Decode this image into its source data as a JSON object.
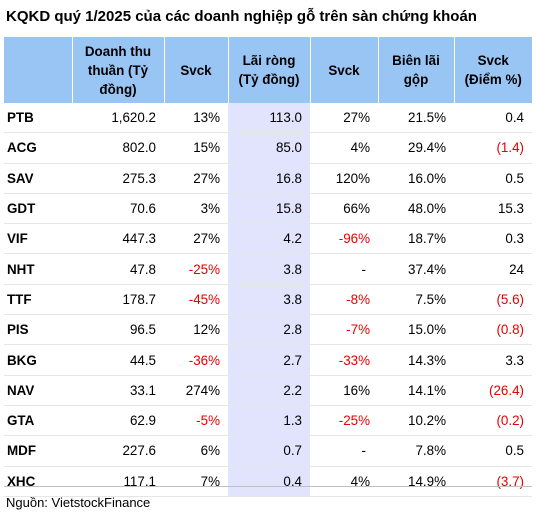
{
  "title": "KQKD quý 1/2025 của các doanh nghiệp gỗ trên sàn chứng khoán",
  "columns": [
    "",
    "Doanh thu thuần (Tỷ đồng)",
    "Svck",
    "Lãi ròng (Tỷ đồng)",
    "Svck",
    "Biên lãi gộp",
    "Svck (Điểm %)"
  ],
  "rows": [
    [
      "PTB",
      "1,620.2",
      "13%",
      "113.0",
      "27%",
      "21.5%",
      "0.4"
    ],
    [
      "ACG",
      "802.0",
      "15%",
      "85.0",
      "4%",
      "29.4%",
      "(1.4)"
    ],
    [
      "SAV",
      "275.3",
      "27%",
      "16.8",
      "120%",
      "16.0%",
      "0.5"
    ],
    [
      "GDT",
      "70.6",
      "3%",
      "15.8",
      "66%",
      "48.0%",
      "15.3"
    ],
    [
      "VIF",
      "447.3",
      "27%",
      "4.2",
      "-96%",
      "18.7%",
      "0.3"
    ],
    [
      "NHT",
      "47.8",
      "-25%",
      "3.8",
      "-",
      "37.4%",
      "24"
    ],
    [
      "TTF",
      "178.7",
      "-45%",
      "3.8",
      "-8%",
      "7.5%",
      "(5.6)"
    ],
    [
      "PIS",
      "96.5",
      "12%",
      "2.8",
      "-7%",
      "15.0%",
      "(0.8)"
    ],
    [
      "BKG",
      "44.5",
      "-36%",
      "2.7",
      "-33%",
      "14.3%",
      "3.3"
    ],
    [
      "NAV",
      "33.1",
      "274%",
      "2.2",
      "16%",
      "14.1%",
      "(26.4)"
    ],
    [
      "GTA",
      "62.9",
      "-5%",
      "1.3",
      "-25%",
      "10.2%",
      "(0.2)"
    ],
    [
      "MDF",
      "227.6",
      "6%",
      "0.7",
      "-",
      "7.8%",
      "0.5"
    ],
    [
      "XHC",
      "117.1",
      "7%",
      "0.4",
      "4%",
      "14.9%",
      "(3.7)"
    ]
  ],
  "source": "Nguồn: VietstockFinance",
  "colors": {
    "header_bg": "#99c5f5",
    "highlight_col_bg": "#e2e3fd",
    "negative": "#e60000"
  }
}
